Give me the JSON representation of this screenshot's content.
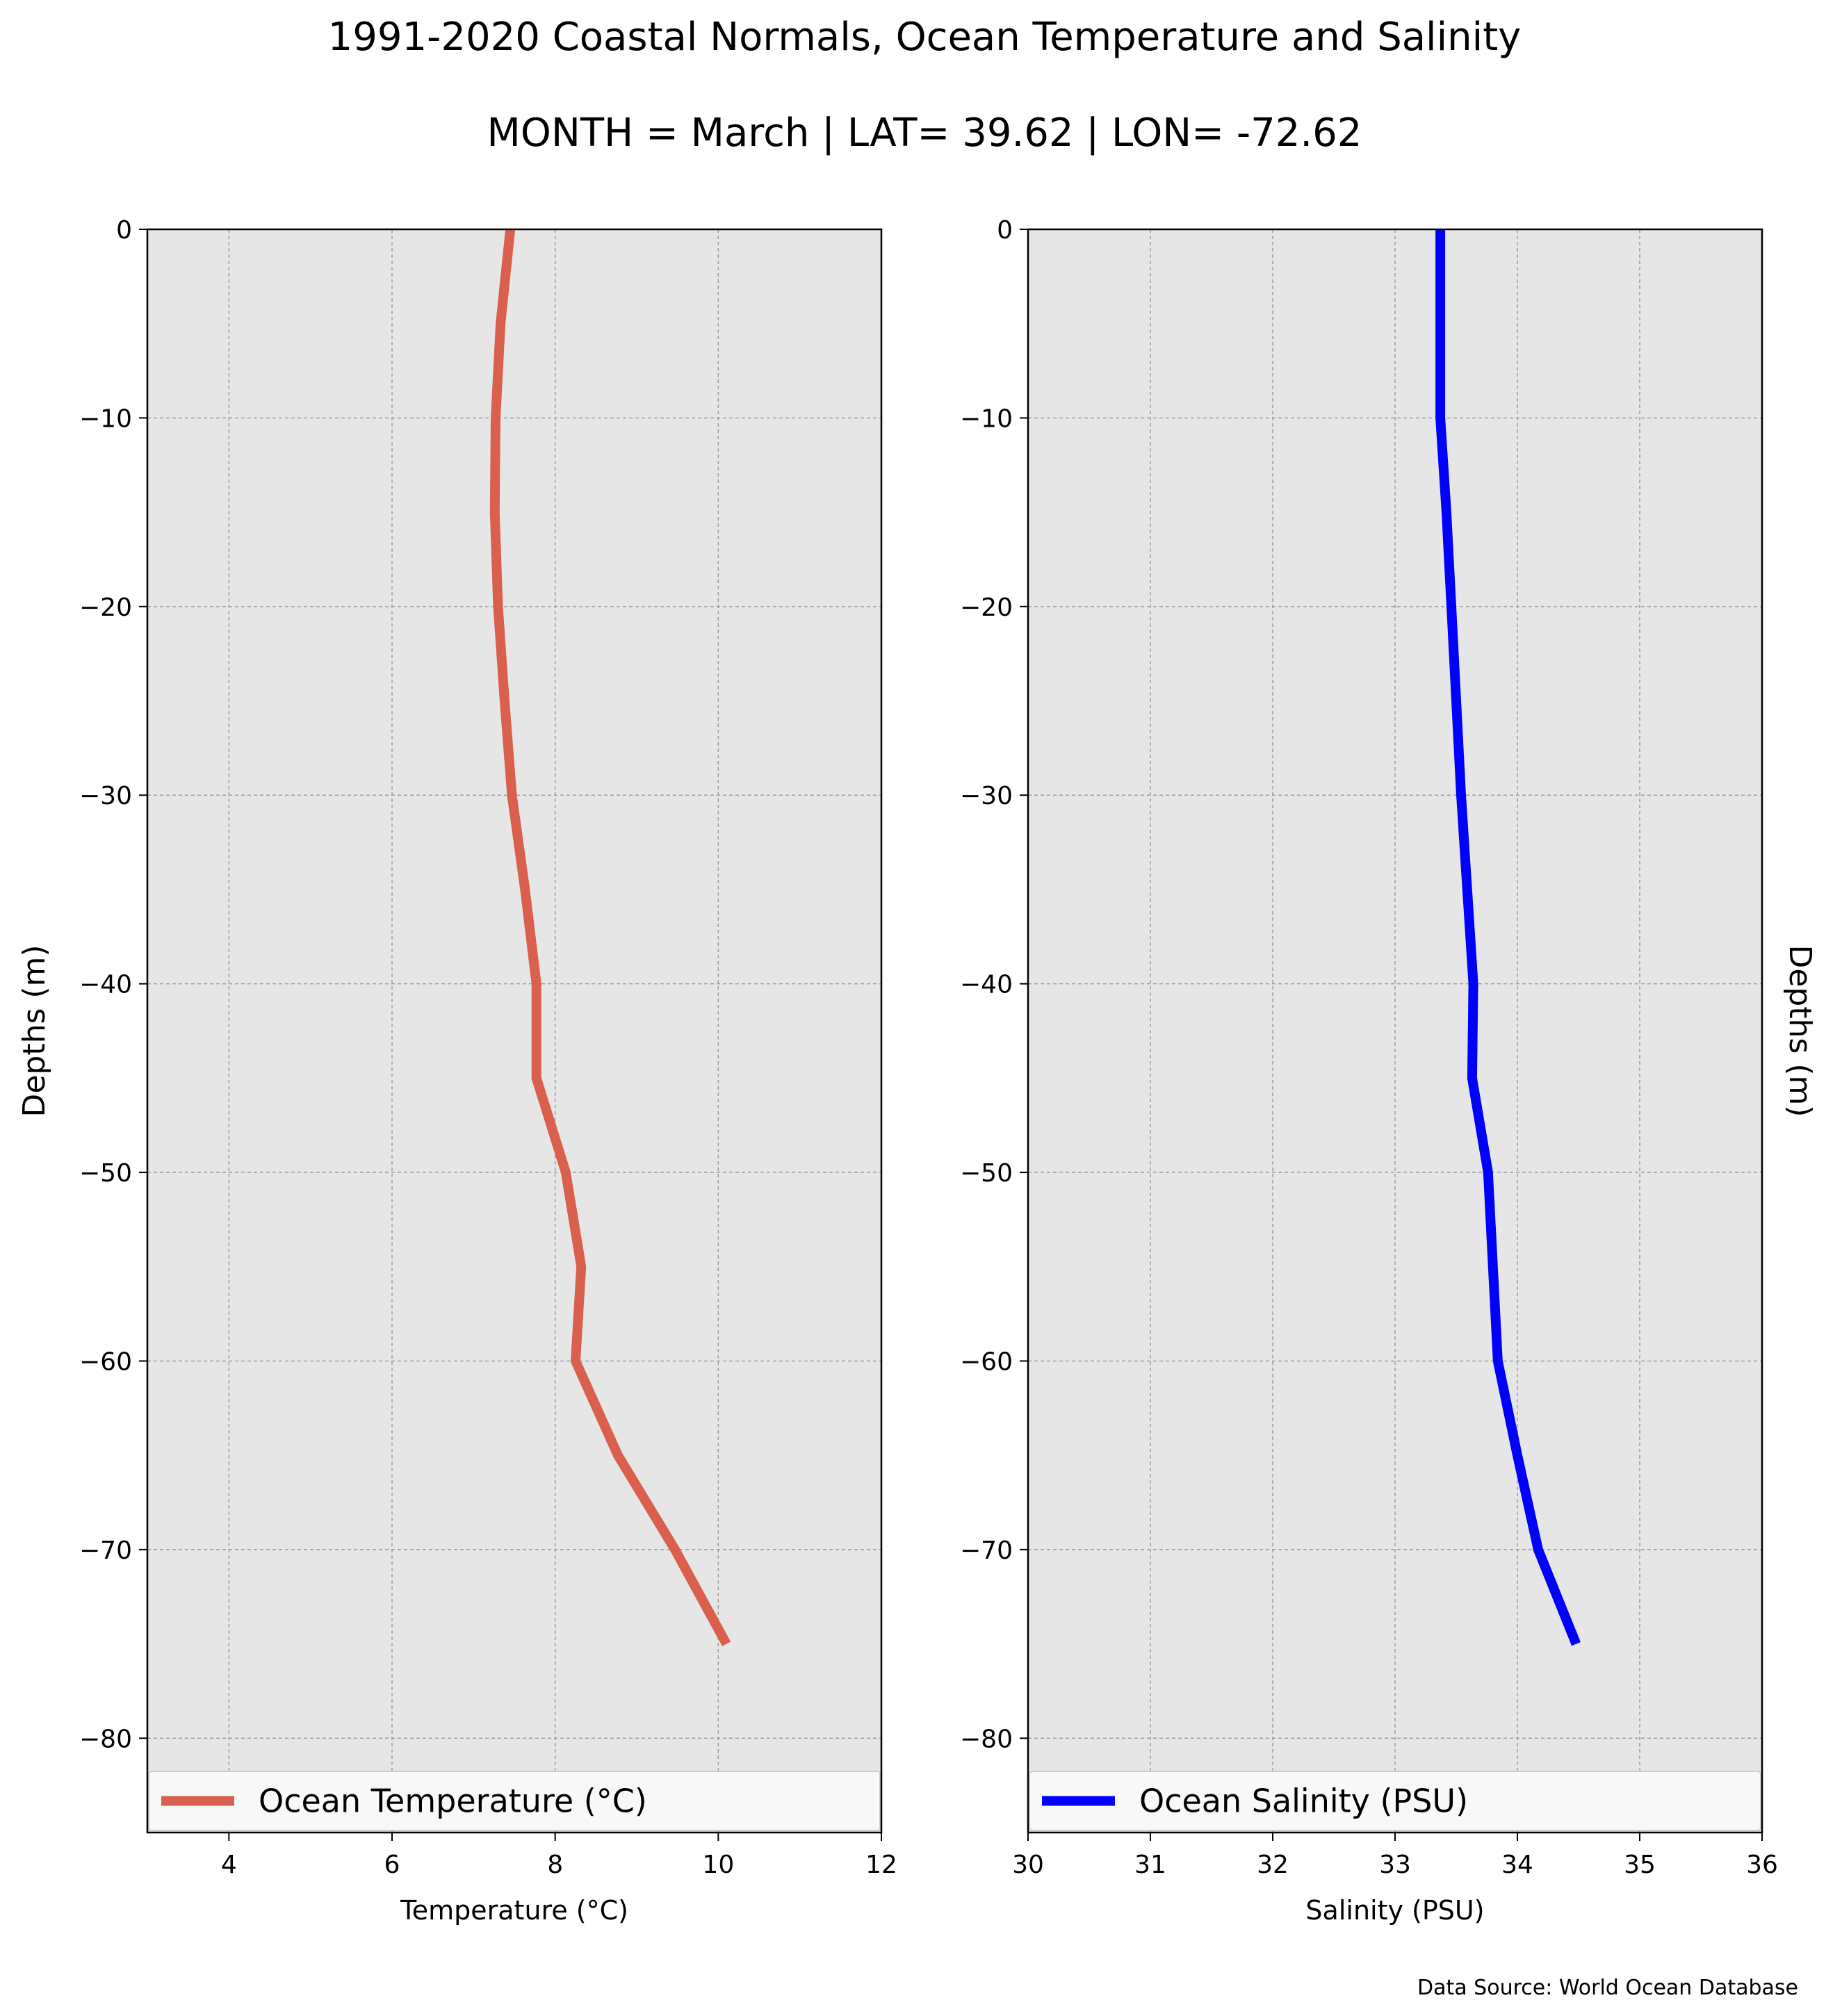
{
  "title": "1991-2020 Coastal Normals, Ocean Temperature and Salinity",
  "subtitle": "MONTH = March | LAT= 39.62 | LON= -72.62",
  "source": "Data Source: World Ocean Database",
  "colors": {
    "plot_bg": "#e6e6e6",
    "grid": "#9e9e9e",
    "temperature": "#d9604e",
    "salinity": "#0000ff"
  },
  "chart_data": [
    {
      "type": "line",
      "xlabel": "Temperature ($^\\circ$C)",
      "xlabel_display": "Temperature (°C)",
      "ylabel": "Depths (m)",
      "xlim": [
        3,
        12
      ],
      "ylim": [
        -85,
        0
      ],
      "xticks": [
        4,
        6,
        8,
        10,
        12
      ],
      "yticks": [
        0,
        -10,
        -20,
        -30,
        -40,
        -50,
        -60,
        -70,
        -80
      ],
      "grid": true,
      "legend": "bottom",
      "series": [
        {
          "name": "Ocean Temperature (°C)",
          "color": "#d9604e",
          "points": [
            {
              "x": 7.45,
              "y": 0
            },
            {
              "x": 7.33,
              "y": -5
            },
            {
              "x": 7.27,
              "y": -10
            },
            {
              "x": 7.26,
              "y": -15
            },
            {
              "x": 7.3,
              "y": -20
            },
            {
              "x": 7.38,
              "y": -25
            },
            {
              "x": 7.47,
              "y": -30
            },
            {
              "x": 7.63,
              "y": -35
            },
            {
              "x": 7.77,
              "y": -40
            },
            {
              "x": 7.77,
              "y": -45
            },
            {
              "x": 8.13,
              "y": -50
            },
            {
              "x": 8.32,
              "y": -55
            },
            {
              "x": 8.25,
              "y": -60
            },
            {
              "x": 8.77,
              "y": -65
            },
            {
              "x": 9.47,
              "y": -70
            },
            {
              "x": 10.1,
              "y": -75
            }
          ]
        }
      ]
    },
    {
      "type": "line",
      "xlabel": "Salinity (PSU)",
      "ylabel": "Depths (m)",
      "xlim": [
        30,
        36
      ],
      "ylim": [
        -85,
        0
      ],
      "xticks": [
        30,
        31,
        32,
        33,
        34,
        35,
        36
      ],
      "yticks": [
        0,
        -10,
        -20,
        -30,
        -40,
        -50,
        -60,
        -70,
        -80
      ],
      "grid": true,
      "legend": "bottom",
      "series": [
        {
          "name": "Ocean Salinity (PSU)",
          "color": "#0000ff",
          "points": [
            {
              "x": 33.37,
              "y": 0
            },
            {
              "x": 33.37,
              "y": -5
            },
            {
              "x": 33.37,
              "y": -10
            },
            {
              "x": 33.42,
              "y": -15
            },
            {
              "x": 33.46,
              "y": -20
            },
            {
              "x": 33.5,
              "y": -25
            },
            {
              "x": 33.54,
              "y": -30
            },
            {
              "x": 33.59,
              "y": -35
            },
            {
              "x": 33.64,
              "y": -40
            },
            {
              "x": 33.63,
              "y": -45
            },
            {
              "x": 33.76,
              "y": -50
            },
            {
              "x": 33.8,
              "y": -55
            },
            {
              "x": 33.84,
              "y": -60
            },
            {
              "x": 34.0,
              "y": -65
            },
            {
              "x": 34.17,
              "y": -70
            },
            {
              "x": 34.48,
              "y": -75
            }
          ]
        }
      ]
    }
  ]
}
